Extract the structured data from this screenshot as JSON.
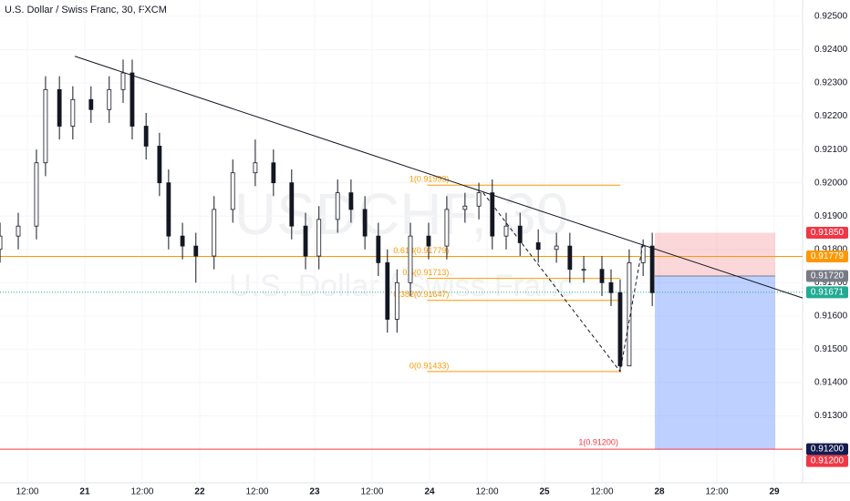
{
  "chart_data": {
    "type": "candlestick",
    "title": "U.S. Dollar / Swiss Franc, 30, FXCM",
    "watermark": "USDCHF, 30",
    "watermark_subtitle": "U.S. Dollar / Swiss Franc",
    "up_color": "#ffffff",
    "down_color": "#131722",
    "x": [
      6.3,
      10.1,
      13.9,
      15.8,
      18.7,
      21.5,
      25.3,
      29.1,
      32,
      33.9,
      36.8,
      39.6,
      41.5,
      44.4,
      47.2,
      51,
      54.9,
      59.6,
      63.4,
      67.2,
      70.1,
      72.9,
      76.8,
      79.6,
      82.5,
      85.3,
      87.2,
      89.2,
      92,
      95.8,
      99.6,
      103.4,
      106.3,
      109.1,
      112,
      114.9,
      118.7,
      122.5,
      125.3,
      128.2,
      132,
      133.9,
      135.8,
      137.7,
      140.6,
      142.5
    ],
    "open": [
      0.918,
      0.9184,
      0.9187,
      0.9206,
      0.9228,
      0.9217,
      0.9225,
      0.9222,
      0.9228,
      0.9233,
      0.9217,
      0.9211,
      0.92,
      0.9184,
      0.9181,
      0.9178,
      0.9192,
      0.9203,
      0.9206,
      0.92,
      0.9187,
      0.9178,
      0.9189,
      0.9197,
      0.9192,
      0.9184,
      0.9176,
      0.9159,
      0.917,
      0.9184,
      0.9181,
      0.9192,
      0.9193,
      0.9197,
      0.9184,
      0.9187,
      0.9182,
      0.918,
      0.9181,
      0.9174,
      0.9174,
      0.917,
      0.9167,
      0.9145,
      0.9176,
      0.9181
    ],
    "high": [
      0.9188,
      0.9191,
      0.921,
      0.9232,
      0.9232,
      0.9229,
      0.9229,
      0.9232,
      0.9237,
      0.9237,
      0.9221,
      0.9215,
      0.9204,
      0.9188,
      0.9185,
      0.9196,
      0.9207,
      0.9213,
      0.921,
      0.9204,
      0.9191,
      0.9193,
      0.9201,
      0.9201,
      0.9196,
      0.9188,
      0.918,
      0.9174,
      0.9188,
      0.9188,
      0.9196,
      0.9197,
      0.92,
      0.9201,
      0.9191,
      0.9191,
      0.9186,
      0.9185,
      0.9185,
      0.9178,
      0.9178,
      0.9174,
      0.9171,
      0.918,
      0.9183,
      0.9185
    ],
    "low": [
      0.9176,
      0.918,
      0.9183,
      0.9202,
      0.9213,
      0.9213,
      0.9218,
      0.9218,
      0.9224,
      0.9213,
      0.9207,
      0.9196,
      0.918,
      0.9177,
      0.917,
      0.9174,
      0.9188,
      0.9199,
      0.9196,
      0.9183,
      0.9174,
      0.9174,
      0.9185,
      0.9188,
      0.918,
      0.9172,
      0.9155,
      0.9155,
      0.9166,
      0.9177,
      0.9177,
      0.9188,
      0.9189,
      0.918,
      0.918,
      0.9178,
      0.9176,
      0.9176,
      0.917,
      0.917,
      0.9166,
      0.9163,
      0.91433,
      0.9145,
      0.9172,
      0.9163
    ],
    "close": [
      0.9184,
      0.9187,
      0.9206,
      0.9228,
      0.9217,
      0.9225,
      0.9222,
      0.9228,
      0.9233,
      0.9217,
      0.9211,
      0.92,
      0.9184,
      0.9181,
      0.9178,
      0.9192,
      0.9203,
      0.9206,
      0.92,
      0.9187,
      0.9178,
      0.9189,
      0.9197,
      0.9192,
      0.9184,
      0.9176,
      0.9159,
      0.917,
      0.9184,
      0.9181,
      0.9192,
      0.9193,
      0.9197,
      0.9184,
      0.9187,
      0.9182,
      0.918,
      0.9181,
      0.9174,
      0.9174,
      0.917,
      0.9167,
      0.9145,
      0.9176,
      0.9181,
      0.9167
    ],
    "xlim": [
      6.29,
      173.9
    ],
    "xticks": [
      {
        "value": 12,
        "label": "12:00"
      },
      {
        "value": 24,
        "label": "21"
      },
      {
        "value": 36,
        "label": "12:00"
      },
      {
        "value": 48,
        "label": "22"
      },
      {
        "value": 60,
        "label": "12:00"
      },
      {
        "value": 72,
        "label": "23"
      },
      {
        "value": 84,
        "label": "12:00"
      },
      {
        "value": 96,
        "label": "24"
      },
      {
        "value": 108,
        "label": "12:00"
      },
      {
        "value": 120,
        "label": "25"
      },
      {
        "value": 132,
        "label": "12:00"
      },
      {
        "value": 144,
        "label": "28"
      },
      {
        "value": 156,
        "label": "12:00"
      },
      {
        "value": 168,
        "label": "29"
      }
    ],
    "ylim": [
      0.91099,
      0.92549
    ],
    "yticks": [
      {
        "value": 0.925,
        "label": "0.92500"
      },
      {
        "value": 0.924,
        "label": "0.92400"
      },
      {
        "value": 0.923,
        "label": "0.92300"
      },
      {
        "value": 0.922,
        "label": "0.92200"
      },
      {
        "value": 0.921,
        "label": "0.92100"
      },
      {
        "value": 0.92,
        "label": "0.92000"
      },
      {
        "value": 0.919,
        "label": "0.91900"
      },
      {
        "value": 0.918,
        "label": "0.91800"
      },
      {
        "value": 0.917,
        "label": "0.91700"
      },
      {
        "value": 0.916,
        "label": "0.91600"
      },
      {
        "value": 0.915,
        "label": "0.91500"
      },
      {
        "value": 0.914,
        "label": "0.91400"
      },
      {
        "value": 0.913,
        "label": "0.91300"
      }
    ],
    "trendline": {
      "x": [
        21.9,
        173.9
      ],
      "y": [
        0.9238,
        0.91654
      ],
      "color": "#131722"
    },
    "zigzag": {
      "x": [
        107.2,
        135.8,
        140.6
      ],
      "y": [
        0.9197,
        0.91433,
        0.9182
      ]
    },
    "horizontal_lines": [
      {
        "value": 0.91779,
        "color": "#ff9800",
        "style": "solid"
      },
      {
        "value": 0.91671,
        "color": "#22ab94",
        "style": "dotted"
      },
      {
        "value": 0.912,
        "color": "#f23645",
        "style": "solid"
      }
    ],
    "fib_levels": [
      {
        "label": "1(0.91993)",
        "value": 0.91993
      },
      {
        "label": "0.618(0.91779)",
        "value": 0.91779
      },
      {
        "label": "0.5(0.91713)",
        "value": 0.91713
      },
      {
        "label": "0.382(0.91647)",
        "value": 0.91647
      },
      {
        "label": "0(0.91433)",
        "value": 0.91433
      }
    ],
    "fib_x": [
      95.5,
      135.8
    ],
    "target_label": {
      "label": "1(0.91200)",
      "value": 0.912
    },
    "position": {
      "x": [
        143.05,
        168.2
      ],
      "stop": 0.9185,
      "entry": 0.9172,
      "target": 0.912
    },
    "price_labels": [
      {
        "value": 0.9185,
        "label": "0.91850",
        "color": "#f23645"
      },
      {
        "value": 0.91779,
        "label": "0.91779",
        "color": "#ff9800"
      },
      {
        "value": 0.9172,
        "label": "0.91720",
        "color": "#787b86"
      },
      {
        "value": 0.91671,
        "label": "0.91671",
        "color": "#22ab94"
      },
      {
        "value": 0.912,
        "label": "0.91200",
        "color": "#131c4f"
      },
      {
        "value": 0.912,
        "label": "0.91200",
        "color": "#f23645"
      }
    ]
  }
}
